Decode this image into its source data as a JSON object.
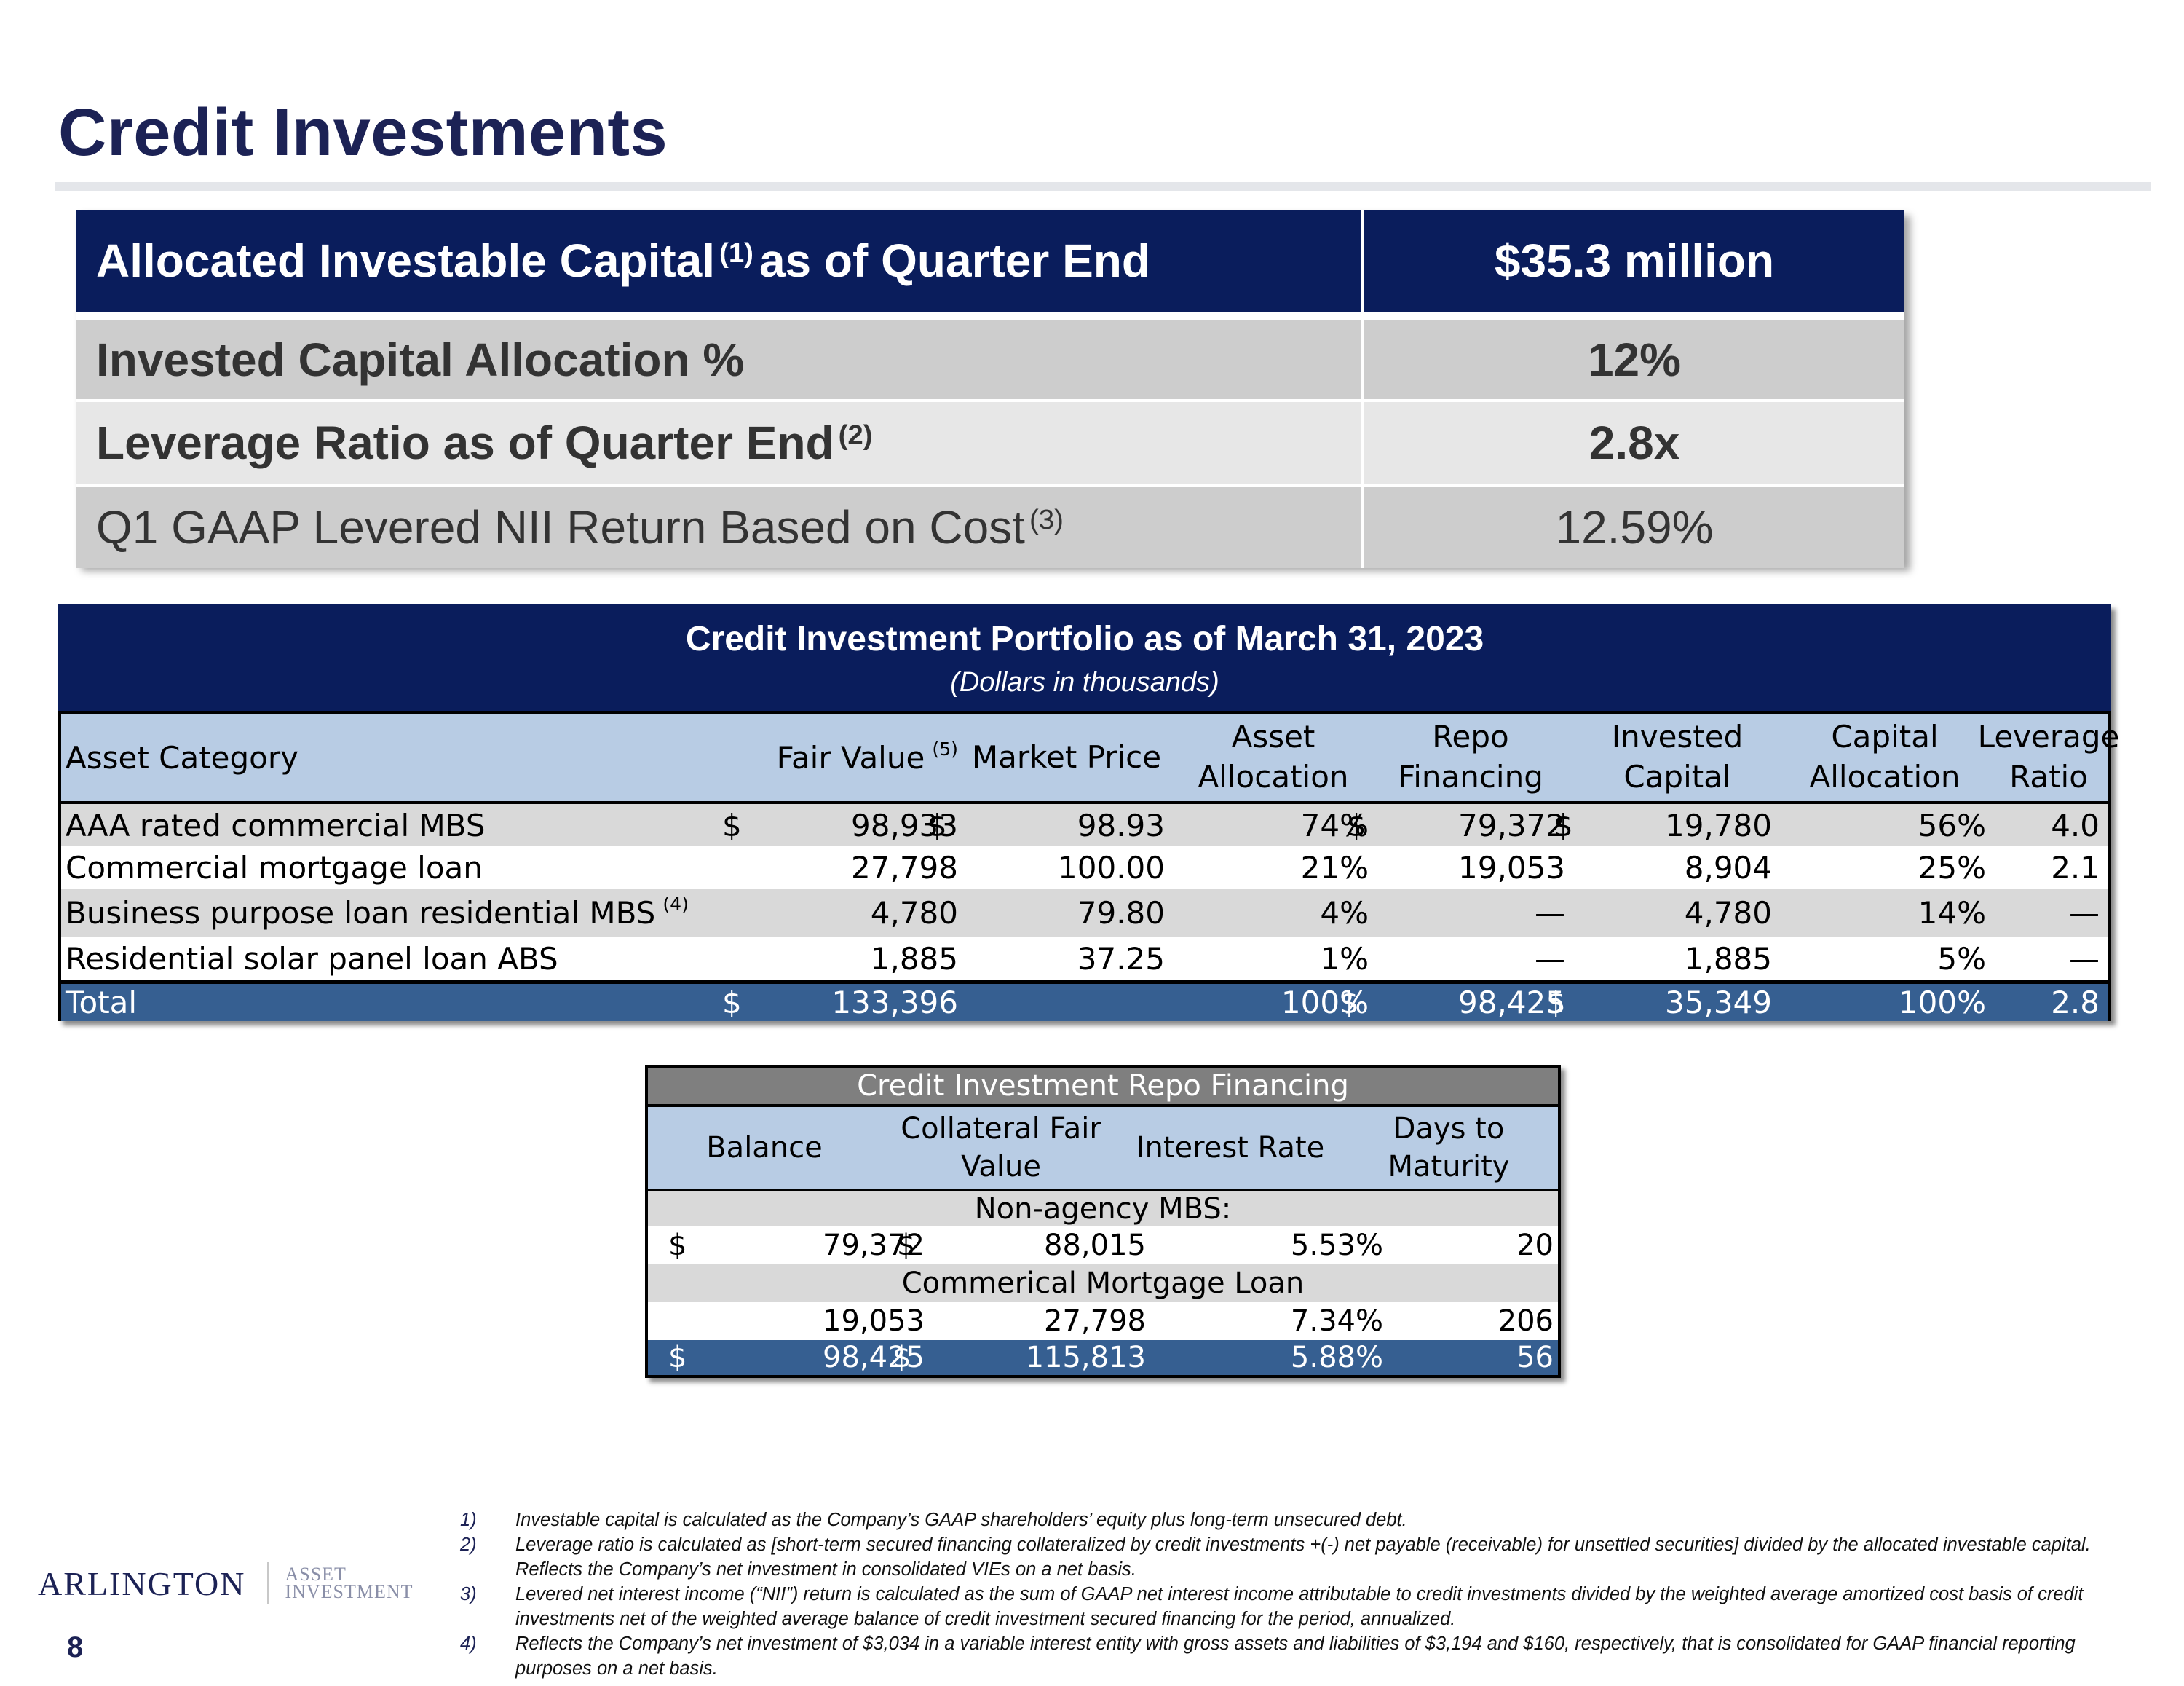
{
  "page": {
    "title": "Credit Investments",
    "page_number": "8"
  },
  "summary": {
    "header": {
      "label": "Allocated Investable Capital",
      "label_note": "(1)",
      "label_suffix": "as of Quarter End",
      "value": "$35.3 million"
    },
    "rows": [
      {
        "label": "Invested Capital Allocation %",
        "note": "",
        "value": "12%"
      },
      {
        "label": "Leverage Ratio as of Quarter End",
        "note": "(2)",
        "value": "2.8x"
      },
      {
        "label": "Q1 GAAP Levered NII Return Based on Cost",
        "note": "(3)",
        "value": "12.59%"
      }
    ]
  },
  "portfolio": {
    "title": "Credit Investment Portfolio as of March 31, 2023",
    "subtitle": "(Dollars in thousands)",
    "headers": {
      "asset_category": "Asset Category",
      "fair_value": "Fair Value",
      "fair_value_note": "(5)",
      "market_price": "Market Price",
      "asset_allocation_1": "Asset",
      "asset_allocation_2": "Allocation",
      "repo_financing_1": "Repo",
      "repo_financing_2": "Financing",
      "invested_capital_1": "Invested",
      "invested_capital_2": "Capital",
      "capital_allocation_1": "Capital",
      "capital_allocation_2": "Allocation",
      "leverage_ratio_1": "Leverage",
      "leverage_ratio_2": "Ratio"
    },
    "rows": [
      {
        "category": "AAA rated commercial MBS",
        "note": "",
        "fv_sign": "$",
        "fair_value": "98,933",
        "mp_sign": "$",
        "market_price": "98.93",
        "asset_allocation": "74%",
        "repo_sign": "$",
        "repo_financing": "79,372",
        "ic_sign": "$",
        "invested_capital": "19,780",
        "capital_allocation": "56%",
        "leverage_ratio": "4.0"
      },
      {
        "category": "Commercial mortgage loan",
        "note": "",
        "fv_sign": "",
        "fair_value": "27,798",
        "mp_sign": "",
        "market_price": "100.00",
        "asset_allocation": "21%",
        "repo_sign": "",
        "repo_financing": "19,053",
        "ic_sign": "",
        "invested_capital": "8,904",
        "capital_allocation": "25%",
        "leverage_ratio": "2.1"
      },
      {
        "category": "Business purpose loan residential MBS",
        "note": "(4)",
        "fv_sign": "",
        "fair_value": "4,780",
        "mp_sign": "",
        "market_price": "79.80",
        "asset_allocation": "4%",
        "repo_sign": "",
        "repo_financing": "—",
        "ic_sign": "",
        "invested_capital": "4,780",
        "capital_allocation": "14%",
        "leverage_ratio": "—"
      },
      {
        "category": "Residential solar panel loan ABS",
        "note": "",
        "fv_sign": "",
        "fair_value": "1,885",
        "mp_sign": "",
        "market_price": "37.25",
        "asset_allocation": "1%",
        "repo_sign": "",
        "repo_financing": "—",
        "ic_sign": "",
        "invested_capital": "1,885",
        "capital_allocation": "5%",
        "leverage_ratio": "—"
      }
    ],
    "total": {
      "category": "Total",
      "fv_sign": "$",
      "fair_value": "133,396",
      "asset_allocation": "100%",
      "repo_sign": "$",
      "repo_financing": "98,425",
      "ic_sign": "$",
      "invested_capital": "35,349",
      "capital_allocation": "100%",
      "leverage_ratio": "2.8"
    }
  },
  "repo": {
    "title": "Credit Investment Repo Financing",
    "headers": {
      "balance": "Balance",
      "collateral_1": "Collateral Fair",
      "collateral_2": "Value",
      "interest_rate": "Interest Rate",
      "days_1": "Days to",
      "days_2": "Maturity"
    },
    "sections": [
      {
        "label": "Non-agency MBS:",
        "bal_sign": "$",
        "balance": "79,372",
        "col_sign": "$",
        "collateral": "88,015",
        "rate": "5.53%",
        "days": "20"
      },
      {
        "label": "Commerical Mortgage Loan",
        "bal_sign": "",
        "balance": "19,053",
        "col_sign": "",
        "collateral": "27,798",
        "rate": "7.34%",
        "days": "206"
      }
    ],
    "total": {
      "bal_sign": "$",
      "balance": "98,425",
      "col_sign": "$",
      "collateral": "115,813",
      "rate": "5.88%",
      "days": "56"
    }
  },
  "logo": {
    "main": "ARLINGTON",
    "sub_1": "ASSET",
    "sub_2": "INVESTMENT"
  },
  "footnotes": [
    {
      "num": "1)",
      "text": "Investable capital is calculated as the Company’s GAAP shareholders’ equity plus long-term unsecured debt."
    },
    {
      "num": "2)",
      "text": "Leverage ratio is calculated as [short-term secured financing collateralized by credit investments +(-) net payable (receivable) for unsettled securities] divided by the allocated investable capital.  Reflects the Company’s net investment in consolidated VIEs on a net basis."
    },
    {
      "num": "3)",
      "text": "Levered net interest income (“NII”) return is calculated as the sum of GAAP net interest income attributable to credit investments divided by the weighted average amortized cost basis of credit investments net of the weighted average balance of credit investment secured financing for the period, annualized."
    },
    {
      "num": "4)",
      "text": "Reflects the Company’s net investment of $3,034 in a variable interest entity with gross assets and liabilities of $3,194 and $160, respectively, that is consolidated for GAAP financial reporting purposes on a net basis."
    }
  ]
}
